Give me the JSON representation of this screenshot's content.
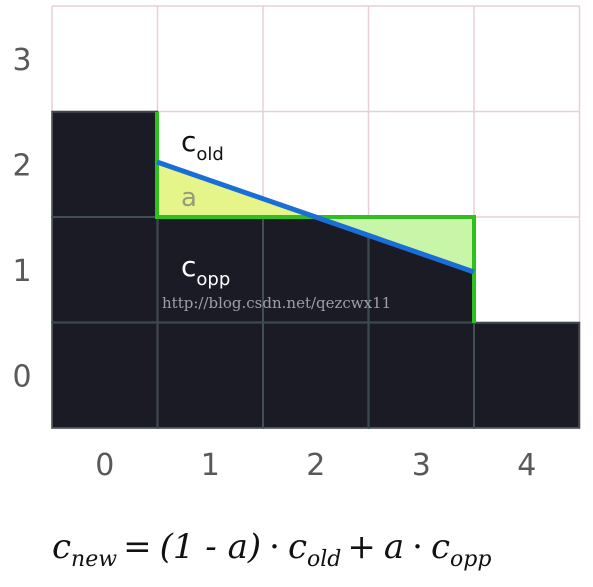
{
  "grid": {
    "x_labels": [
      "0",
      "1",
      "2",
      "3",
      "4"
    ],
    "y_labels": [
      "0",
      "1",
      "2",
      "3"
    ],
    "filled_cells": [
      [
        0,
        0
      ],
      [
        1,
        0
      ],
      [
        2,
        0
      ],
      [
        3,
        0
      ],
      [
        4,
        0
      ],
      [
        0,
        1
      ],
      [
        1,
        1
      ],
      [
        2,
        1
      ],
      [
        3,
        1
      ],
      [
        0,
        2
      ]
    ],
    "fill_color": "#1b1b25",
    "line_color_light": "#e7cfd3",
    "line_color_dark": "#3a4a4a"
  },
  "labels": {
    "c_old_base": "c",
    "c_old_sub": "old",
    "a_label": "a",
    "c_opp_base": "c",
    "c_opp_sub": "opp"
  },
  "watermark": "http://blog.csdn.net/qezcwx11",
  "formula": {
    "lhs_base": "c",
    "lhs_sub": "new",
    "equals": "=",
    "factor": "(1 - a)",
    "dot1": "·",
    "old_base": "c",
    "old_sub": "old",
    "plus": "+",
    "a": "a",
    "dot2": "·",
    "opp_base": "c",
    "opp_sub": "opp"
  },
  "colors": {
    "edge_line": "#1a6fd6",
    "outline_green": "#2fbf1f",
    "yellow_fill": "#e6f58a",
    "light_green_fill": "#c8f5a8"
  }
}
